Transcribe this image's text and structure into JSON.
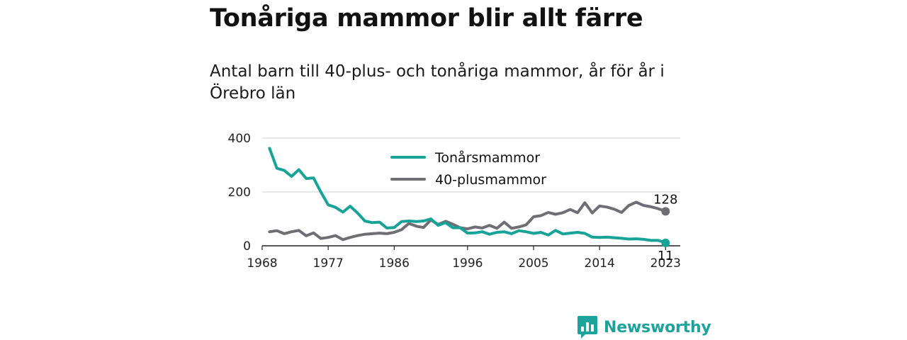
{
  "header": {
    "title": "Tonåriga mammor blir allt färre",
    "subtitle": "Antal barn till 40-plus- och tonåriga mammor, år för år i Örebro län"
  },
  "brand": {
    "name": "Newsworthy",
    "icon": "newsworthy-logo-icon"
  },
  "colors": {
    "teen": "#17a398",
    "forty": "#6f6e74",
    "grid": "#d9d9d9",
    "axis": "#222222",
    "brand": "#1ba39c"
  },
  "chart_data": {
    "type": "line",
    "x": [
      1969,
      1970,
      1971,
      1972,
      1973,
      1974,
      1975,
      1976,
      1977,
      1978,
      1979,
      1980,
      1981,
      1982,
      1983,
      1984,
      1985,
      1986,
      1987,
      1988,
      1989,
      1990,
      1991,
      1992,
      1993,
      1994,
      1995,
      1996,
      1997,
      1998,
      1999,
      2000,
      2001,
      2002,
      2003,
      2004,
      2005,
      2006,
      2007,
      2008,
      2009,
      2010,
      2011,
      2012,
      2013,
      2014,
      2015,
      2016,
      2017,
      2018,
      2019,
      2020,
      2021,
      2022,
      2023
    ],
    "series": [
      {
        "name": "Tonårsmammor",
        "color": "#17a398",
        "values": [
          362,
          288,
          280,
          258,
          283,
          250,
          252,
          200,
          152,
          143,
          125,
          147,
          122,
          92,
          86,
          88,
          66,
          68,
          90,
          92,
          90,
          92,
          100,
          76,
          86,
          67,
          67,
          47,
          48,
          52,
          43,
          50,
          52,
          45,
          56,
          52,
          46,
          50,
          40,
          57,
          44,
          47,
          50,
          46,
          32,
          31,
          32,
          30,
          28,
          25,
          26,
          24,
          20,
          20,
          11
        ]
      },
      {
        "name": "40-plusmammor",
        "color": "#6f6e74",
        "values": [
          52,
          56,
          45,
          52,
          57,
          37,
          48,
          27,
          31,
          38,
          23,
          31,
          38,
          43,
          45,
          47,
          45,
          50,
          60,
          83,
          73,
          68,
          96,
          79,
          91,
          80,
          67,
          63,
          70,
          66,
          76,
          65,
          88,
          65,
          70,
          78,
          108,
          112,
          124,
          117,
          123,
          135,
          123,
          160,
          122,
          148,
          144,
          136,
          124,
          150,
          162,
          150,
          145,
          138,
          128
        ]
      }
    ],
    "xticks": [
      1968,
      1977,
      1986,
      1996,
      2005,
      2014,
      2023
    ],
    "yticks": [
      0,
      200,
      400
    ],
    "xlim": [
      1968,
      2025
    ],
    "ylim": [
      0,
      400
    ],
    "end_labels": [
      {
        "series": "40-plusmammor",
        "text": "128"
      },
      {
        "series": "Tonårsmammor",
        "text": "11"
      }
    ],
    "legend": "top-center",
    "grid": "horizontal"
  }
}
